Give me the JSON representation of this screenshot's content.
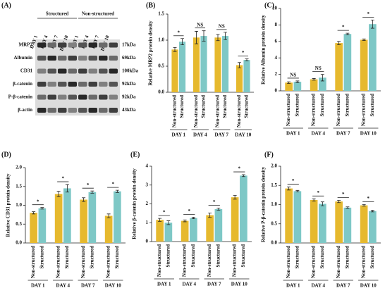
{
  "blot": {
    "panel": "(A)",
    "groups": [
      {
        "name": "Structured",
        "lanes": [
          "DAY 1",
          "DAY 4",
          "DAY 7",
          "DAY 10"
        ]
      },
      {
        "name": "Non-structured",
        "lanes": [
          "DAY 1",
          "DAY 4",
          "DAY 7",
          "DAY 10"
        ]
      }
    ],
    "rows": [
      {
        "protein": "MRP2",
        "size": "17kDa"
      },
      {
        "protein": "Albumin",
        "size": "69kDa"
      },
      {
        "protein": "CD31",
        "size": "100kDa"
      },
      {
        "protein": "β-catenin",
        "size": "92kDa"
      },
      {
        "protein": "P-β-catenin",
        "size": "92kDa"
      },
      {
        "protein": "β-actin",
        "size": "43kDa"
      }
    ]
  },
  "chart_data": [
    {
      "type": "bar",
      "panel": "(B)",
      "ylabel": "Relative MRP2 protein density",
      "categories": [
        "DAY 1",
        "DAY 4",
        "DAY 7",
        "DAY 10"
      ],
      "series": [
        {
          "name": "Non-structured",
          "color": "#e6b92e",
          "values": [
            0.82,
            1.05,
            1.05,
            0.52
          ],
          "errors": [
            0.04,
            0.12,
            0.06,
            0.05
          ]
        },
        {
          "name": "Structured",
          "color": "#7ec8c6",
          "values": [
            0.97,
            1.08,
            1.08,
            0.62
          ],
          "errors": [
            0.06,
            0.1,
            0.07,
            0.02
          ]
        }
      ],
      "annotations": [
        "*",
        "NS",
        "NS",
        "*"
      ],
      "ylim": [
        0,
        1.5
      ],
      "yticks": [
        {
          "value": 0,
          "label": "0.0"
        },
        {
          "value": 0.5,
          "label": "0.5"
        },
        {
          "value": 1,
          "label": "1.0"
        },
        {
          "value": 1.5,
          "label": "1.5"
        }
      ]
    },
    {
      "type": "bar",
      "panel": "(C)",
      "ylabel": "Relative Albumin protein density",
      "categories": [
        "DAY 1",
        "DAY 4",
        "DAY 7",
        "DAY 10"
      ],
      "series": [
        {
          "name": "Non-structured",
          "color": "#e6b92e",
          "values": [
            1.0,
            1.4,
            5.8,
            6.2
          ],
          "errors": [
            0.1,
            0.1,
            0.2,
            0.1
          ]
        },
        {
          "name": "Structured",
          "color": "#7ec8c6",
          "values": [
            1.1,
            1.6,
            6.9,
            8.1
          ],
          "errors": [
            0.1,
            0.4,
            0.1,
            0.5
          ]
        }
      ],
      "annotations": [
        "NS",
        "NS",
        "*",
        "*"
      ],
      "ylim": [
        0,
        10
      ],
      "yticks": [
        0,
        2,
        4,
        6,
        8,
        10
      ]
    },
    {
      "type": "bar",
      "panel": "(D)",
      "ylabel": "Relative CD31 protein density",
      "categories": [
        "DAY 1",
        "DAY 4",
        "DAY 7",
        "DAY 10"
      ],
      "series": [
        {
          "name": "Non-structured",
          "color": "#e6b92e",
          "values": [
            0.8,
            1.3,
            1.15,
            0.72
          ],
          "errors": [
            0.03,
            0.07,
            0.05,
            0.05
          ]
        },
        {
          "name": "Structured",
          "color": "#7ec8c6",
          "values": [
            0.92,
            1.45,
            1.35,
            1.37
          ],
          "errors": [
            0.02,
            0.1,
            0.03,
            0.03
          ]
        }
      ],
      "annotations": [
        "*",
        "*",
        "*",
        "*"
      ],
      "ylim": [
        0,
        2
      ],
      "yticks": [
        {
          "value": 0,
          "label": "0.0"
        },
        {
          "value": 0.5,
          "label": "0.5"
        },
        {
          "value": 1,
          "label": "1.0"
        },
        {
          "value": 1.5,
          "label": "1.5"
        },
        {
          "value": 2,
          "label": "2.0"
        }
      ]
    },
    {
      "type": "bar",
      "panel": "(E)",
      "ylabel": "Relative β-catenin protein density",
      "categories": [
        "DAY 1",
        "DAY 4",
        "DAY 7",
        "DAY 10"
      ],
      "series": [
        {
          "name": "Non-structured",
          "color": "#e6b92e",
          "values": [
            1.15,
            1.1,
            1.4,
            2.35
          ],
          "errors": [
            0.08,
            0.05,
            0.12,
            0.1
          ]
        },
        {
          "name": "Structured",
          "color": "#7ec8c6",
          "values": [
            1.0,
            1.25,
            1.72,
            3.5
          ],
          "errors": [
            0.1,
            0.04,
            0.06,
            0.05
          ]
        }
      ],
      "annotations": [
        "*",
        "*",
        "*",
        "*"
      ],
      "ylim": [
        0,
        4
      ],
      "yticks": [
        0,
        1,
        2,
        3,
        4
      ]
    },
    {
      "type": "bar",
      "panel": "(F)",
      "ylabel": "Relative P-β-catenin protein density",
      "categories": [
        "DAY 1",
        "DAY 4",
        "DAY 7",
        "DAY 10"
      ],
      "series": [
        {
          "name": "Non-structured",
          "color": "#e6b92e",
          "values": [
            1.42,
            1.12,
            1.08,
            0.98
          ],
          "errors": [
            0.04,
            0.03,
            0.03,
            0.02
          ]
        },
        {
          "name": "Structured",
          "color": "#7ec8c6",
          "values": [
            1.35,
            1.02,
            0.92,
            0.83
          ],
          "errors": [
            0.02,
            0.05,
            0.02,
            0.02
          ]
        }
      ],
      "annotations": [
        "*",
        "*",
        "*",
        "*"
      ],
      "ylim": [
        0,
        2
      ],
      "yticks": [
        {
          "value": 0,
          "label": "0.0"
        },
        {
          "value": 0.5,
          "label": "0.5"
        },
        {
          "value": 1,
          "label": "1.0"
        },
        {
          "value": 1.5,
          "label": "1.5"
        },
        {
          "value": 2,
          "label": "2.0"
        }
      ]
    }
  ]
}
